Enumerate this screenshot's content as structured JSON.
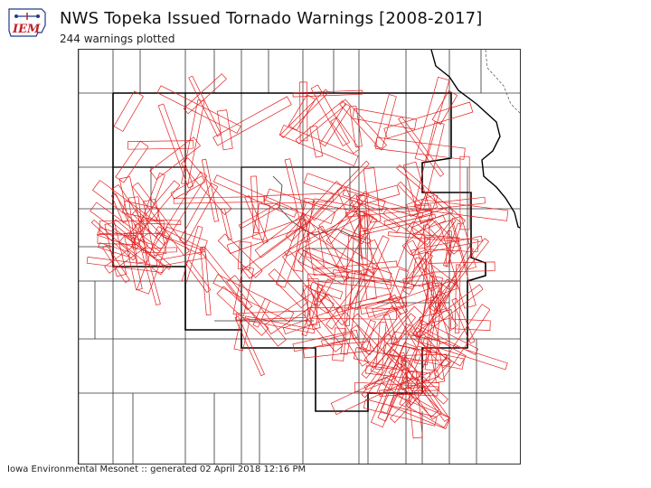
{
  "header": {
    "logo_text": "IEM",
    "title": "NWS Topeka Issued Tornado Warnings [2008-2017]",
    "subtitle": "244 warnings plotted"
  },
  "footer": {
    "credit": "Iowa Environmental Mesonet :: generated 02 April 2018 12:16 PM"
  },
  "colors": {
    "warning": "#e32020",
    "county": "#333333",
    "cwa": "#000000",
    "state": "#000000"
  },
  "map": {
    "warning_count": 244
  }
}
